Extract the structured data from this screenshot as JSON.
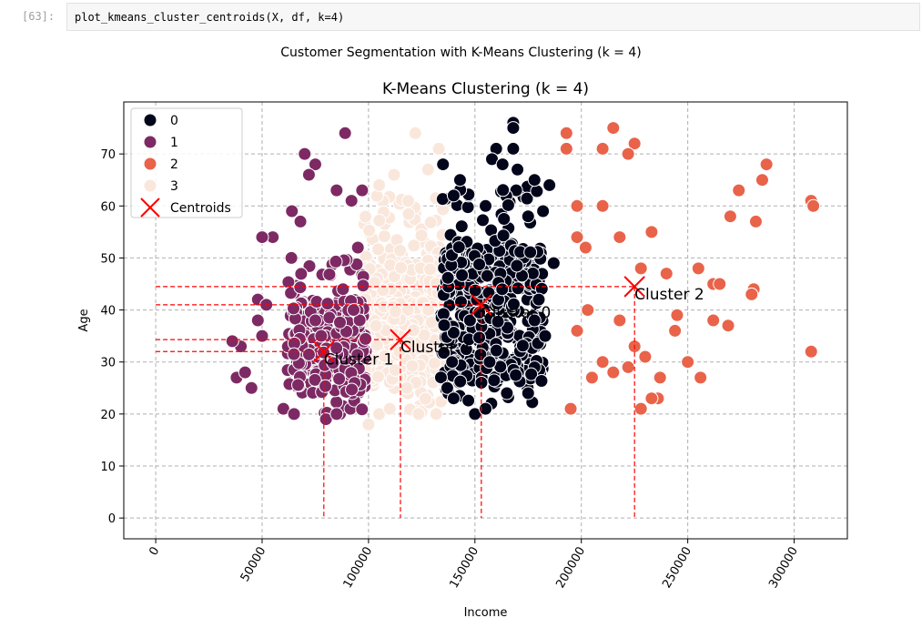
{
  "cell": {
    "prompt": "[63]:",
    "code": "plot_kmeans_cluster_centroids(X, df, k=4)"
  },
  "figure": {
    "suptitle": "Customer Segmentation with K-Means Clustering (k = 4)"
  },
  "chart_data": {
    "type": "scatter",
    "title": "K-Means Clustering (k = 4)",
    "xlabel": "Income",
    "ylabel": "Age",
    "xlim": [
      -15000,
      325000
    ],
    "ylim": [
      -4,
      80
    ],
    "xticks": [
      0,
      50000,
      100000,
      150000,
      200000,
      250000,
      300000
    ],
    "xtick_labels": [
      "0",
      "50000",
      "100000",
      "150000",
      "200000",
      "250000",
      "300000"
    ],
    "yticks": [
      0,
      10,
      20,
      30,
      40,
      50,
      60,
      70
    ],
    "ytick_labels": [
      "0",
      "10",
      "20",
      "30",
      "40",
      "50",
      "60",
      "70"
    ],
    "grid": true,
    "legend": {
      "position": "top-left",
      "entries": [
        {
          "label": "0",
          "color": "#03051a"
        },
        {
          "label": "1",
          "color": "#7d2a64"
        },
        {
          "label": "2",
          "color": "#e8634a"
        },
        {
          "label": "3",
          "color": "#fae7dc"
        },
        {
          "label": "Centroids",
          "color": "#ff0000",
          "marker": "x"
        }
      ]
    },
    "series": [
      {
        "name": "0",
        "color": "#03051a",
        "x_range": [
          132000,
          188000
        ],
        "y_range": [
          20,
          76
        ],
        "points": [
          [
            168000,
            76
          ],
          [
            168000,
            75
          ],
          [
            160000,
            71
          ],
          [
            168000,
            71
          ],
          [
            158000,
            69
          ],
          [
            163000,
            68
          ],
          [
            135000,
            68
          ],
          [
            143000,
            65
          ],
          [
            170000,
            67
          ],
          [
            178000,
            65
          ],
          [
            185000,
            64
          ],
          [
            140000,
            62
          ],
          [
            155000,
            60
          ],
          [
            182000,
            59
          ],
          [
            175000,
            58
          ],
          [
            187000,
            49
          ],
          [
            180000,
            42
          ],
          [
            178000,
            38
          ],
          [
            183000,
            35
          ],
          [
            150000,
            20
          ],
          [
            155000,
            21
          ],
          [
            165000,
            24
          ],
          [
            175000,
            24
          ],
          [
            137000,
            25
          ],
          [
            140000,
            23
          ]
        ]
      },
      {
        "name": "1",
        "color": "#7d2a64",
        "x_range": [
          35000,
          100000
        ],
        "y_range": [
          19,
          74
        ],
        "points": [
          [
            89000,
            74
          ],
          [
            70000,
            70
          ],
          [
            75000,
            68
          ],
          [
            72000,
            66
          ],
          [
            64000,
            59
          ],
          [
            68000,
            57
          ],
          [
            55000,
            54
          ],
          [
            50000,
            54
          ],
          [
            85000,
            63
          ],
          [
            92000,
            61
          ],
          [
            97000,
            63
          ],
          [
            95000,
            52
          ],
          [
            48000,
            42
          ],
          [
            52000,
            41
          ],
          [
            48000,
            38
          ],
          [
            50000,
            35
          ],
          [
            40000,
            33
          ],
          [
            36000,
            34
          ],
          [
            38000,
            27
          ],
          [
            42000,
            28
          ],
          [
            45000,
            25
          ],
          [
            60000,
            21
          ],
          [
            65000,
            20
          ],
          [
            80000,
            19
          ],
          [
            85000,
            20
          ],
          [
            75000,
            38
          ],
          [
            88000,
            44
          ],
          [
            93000,
            40
          ]
        ]
      },
      {
        "name": "2",
        "color": "#e8634a",
        "x_range": [
          190000,
          310000
        ],
        "y_range": [
          21,
          75
        ],
        "points": [
          [
            193000,
            74
          ],
          [
            193000,
            71
          ],
          [
            210000,
            71
          ],
          [
            215000,
            75
          ],
          [
            225000,
            72
          ],
          [
            222000,
            70
          ],
          [
            198000,
            60
          ],
          [
            210000,
            60
          ],
          [
            198000,
            54
          ],
          [
            202000,
            52
          ],
          [
            218000,
            54
          ],
          [
            233000,
            55
          ],
          [
            233000,
            55
          ],
          [
            228000,
            48
          ],
          [
            240000,
            47
          ],
          [
            255000,
            48
          ],
          [
            262000,
            45
          ],
          [
            265000,
            45
          ],
          [
            270000,
            58
          ],
          [
            274000,
            63
          ],
          [
            282000,
            57
          ],
          [
            285000,
            65
          ],
          [
            287000,
            68
          ],
          [
            281000,
            44
          ],
          [
            280000,
            43
          ],
          [
            308000,
            61
          ],
          [
            309000,
            60
          ],
          [
            308000,
            32
          ],
          [
            262000,
            38
          ],
          [
            269000,
            37
          ],
          [
            245000,
            39
          ],
          [
            244000,
            36
          ],
          [
            250000,
            30
          ],
          [
            256000,
            27
          ],
          [
            237000,
            27
          ],
          [
            236000,
            23
          ],
          [
            233000,
            23
          ],
          [
            228000,
            21
          ],
          [
            195000,
            21
          ],
          [
            205000,
            27
          ],
          [
            210000,
            30
          ],
          [
            215000,
            28
          ],
          [
            222000,
            29
          ],
          [
            225000,
            33
          ],
          [
            218000,
            38
          ],
          [
            230000,
            31
          ],
          [
            203000,
            40
          ],
          [
            198000,
            36
          ]
        ]
      },
      {
        "name": "3",
        "color": "#fae7dc",
        "x_range": [
          95000,
          138000
        ],
        "y_range": [
          18,
          74
        ],
        "points": [
          [
            122000,
            74
          ],
          [
            133000,
            71
          ],
          [
            105000,
            64
          ],
          [
            112000,
            66
          ],
          [
            128000,
            67
          ],
          [
            100000,
            18
          ],
          [
            105000,
            20
          ],
          [
            110000,
            21
          ],
          [
            118000,
            25
          ]
        ]
      }
    ],
    "centroids": [
      {
        "label": "Cluster 0",
        "x": 153000,
        "y": 41,
        "color": "#03051a"
      },
      {
        "label": "Cluster 1",
        "x": 79000,
        "y": 32,
        "color": "#7d2a64"
      },
      {
        "label": "Cluster 2",
        "x": 225000,
        "y": 44.5,
        "color": "#e8634a"
      },
      {
        "label": "Cluster 3",
        "x": 115000,
        "y": 34.3,
        "color": "#fae7dc"
      }
    ]
  }
}
